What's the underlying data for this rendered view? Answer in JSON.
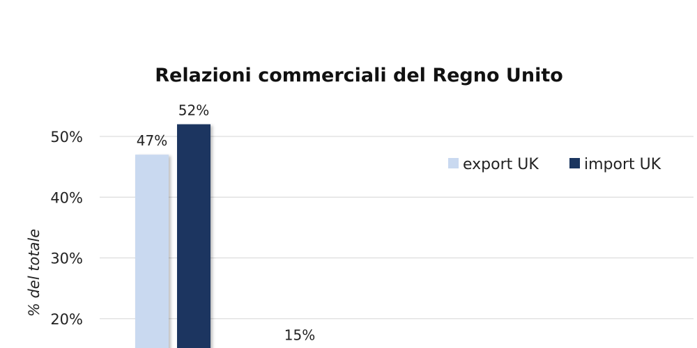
{
  "chart_data": {
    "type": "bar",
    "title": "Relazioni commerciali del Regno Unito",
    "xlabel": "",
    "ylabel": "% del totale",
    "ylim": [
      0,
      60
    ],
    "yticks": [
      "20%",
      "30%",
      "40%",
      "50%"
    ],
    "grid": true,
    "legend_position": "top-right",
    "series": [
      {
        "name": "export UK",
        "color": "#c9d9f0",
        "values": [
          47,
          15
        ]
      },
      {
        "name": "import UK",
        "color": "#1b3660",
        "values": [
          52,
          null
        ]
      }
    ],
    "data_labels": [
      {
        "series": 0,
        "index": 0,
        "text": "47%"
      },
      {
        "series": 1,
        "index": 0,
        "text": "52%"
      },
      {
        "series": 0,
        "index": 1,
        "text": "15%"
      }
    ],
    "colors": {
      "grid": "#d4d4d4",
      "text": "#222222"
    }
  }
}
